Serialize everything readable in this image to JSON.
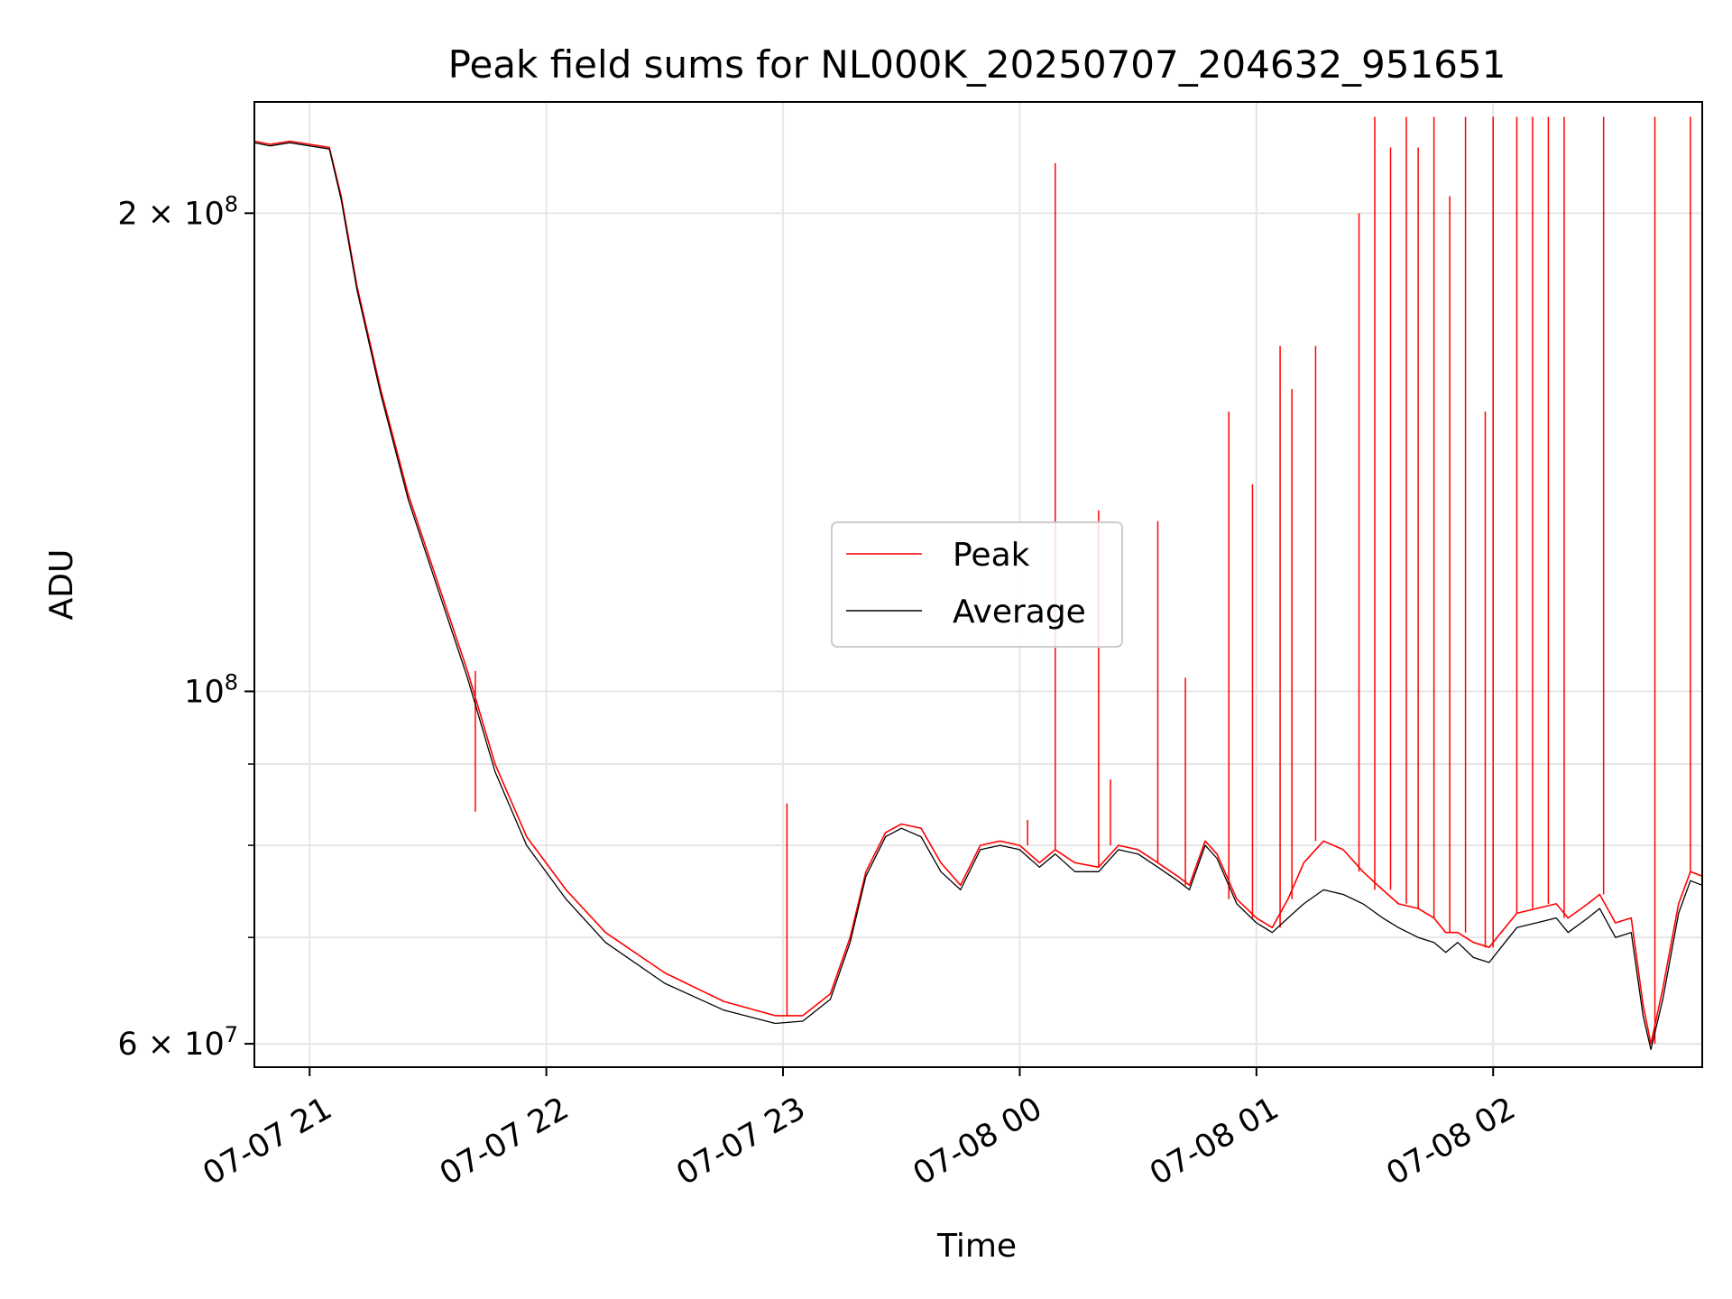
{
  "chart_data": {
    "type": "line",
    "title": "Peak field sums for NL000K_20250707_204632_951651",
    "xlabel": "Time",
    "ylabel": "ADU",
    "yscale": "log",
    "xlim": [
      "2025-07-07 20:46",
      "2025-07-08 02:53"
    ],
    "ylim": [
      58000000,
      235000000
    ],
    "grid": true,
    "legend_position": "center",
    "x_ticks": [
      "07-07 21",
      "07-07 22",
      "07-07 23",
      "07-08 00",
      "07-08 01",
      "07-08 02"
    ],
    "y_ticks": [
      {
        "value": 200000000,
        "mantissa": "2",
        "exponent": "8"
      },
      {
        "value": 100000000,
        "mantissa": "",
        "exponent": "8"
      },
      {
        "value": 60000000,
        "mantissa": "6",
        "exponent": "7"
      }
    ],
    "series": [
      {
        "name": "Peak",
        "color": "#ff0000",
        "points": [
          [
            "2025-07-07 20:46",
            222000000
          ],
          [
            "2025-07-07 20:50",
            221000000
          ],
          [
            "2025-07-07 20:55",
            222000000
          ],
          [
            "2025-07-07 21:00",
            221000000
          ],
          [
            "2025-07-07 21:05",
            220000000
          ],
          [
            "2025-07-07 21:08",
            205000000
          ],
          [
            "2025-07-07 21:12",
            180000000
          ],
          [
            "2025-07-07 21:18",
            155000000
          ],
          [
            "2025-07-07 21:25",
            133000000
          ],
          [
            "2025-07-07 21:32",
            118000000
          ],
          [
            "2025-07-07 21:40",
            103000000
          ],
          [
            "2025-07-07 21:47",
            90000000
          ],
          [
            "2025-07-07 21:55",
            81000000
          ],
          [
            "2025-07-07 22:05",
            75000000
          ],
          [
            "2025-07-07 22:15",
            70500000
          ],
          [
            "2025-07-07 22:30",
            66500000
          ],
          [
            "2025-07-07 22:45",
            63800000
          ],
          [
            "2025-07-07 22:58",
            62500000
          ],
          [
            "2025-07-07 23:05",
            62500000
          ],
          [
            "2025-07-07 23:12",
            64500000
          ],
          [
            "2025-07-07 23:17",
            70000000
          ],
          [
            "2025-07-07 23:21",
            77000000
          ],
          [
            "2025-07-07 23:26",
            81500000
          ],
          [
            "2025-07-07 23:30",
            82500000
          ],
          [
            "2025-07-07 23:35",
            82000000
          ],
          [
            "2025-07-07 23:40",
            78000000
          ],
          [
            "2025-07-07 23:45",
            75500000
          ],
          [
            "2025-07-07 23:50",
            80000000
          ],
          [
            "2025-07-07 23:55",
            80500000
          ],
          [
            "2025-07-08 00:00",
            80000000
          ],
          [
            "2025-07-08 00:05",
            78000000
          ],
          [
            "2025-07-08 00:09",
            79500000
          ],
          [
            "2025-07-08 00:14",
            78000000
          ],
          [
            "2025-07-08 00:20",
            77500000
          ],
          [
            "2025-07-08 00:25",
            80000000
          ],
          [
            "2025-07-08 00:30",
            79500000
          ],
          [
            "2025-07-08 00:35",
            78000000
          ],
          [
            "2025-07-08 00:40",
            76500000
          ],
          [
            "2025-07-08 00:43",
            75500000
          ],
          [
            "2025-07-08 00:47",
            80500000
          ],
          [
            "2025-07-08 00:50",
            79000000
          ],
          [
            "2025-07-08 00:55",
            74000000
          ],
          [
            "2025-07-08 01:00",
            72000000
          ],
          [
            "2025-07-08 01:04",
            71000000
          ],
          [
            "2025-07-08 01:08",
            74000000
          ],
          [
            "2025-07-08 01:12",
            78000000
          ],
          [
            "2025-07-08 01:17",
            80500000
          ],
          [
            "2025-07-08 01:22",
            79500000
          ],
          [
            "2025-07-08 01:27",
            77000000
          ],
          [
            "2025-07-08 01:32",
            75000000
          ],
          [
            "2025-07-08 01:36",
            73500000
          ],
          [
            "2025-07-08 01:41",
            73000000
          ],
          [
            "2025-07-08 01:45",
            72000000
          ],
          [
            "2025-07-08 01:48",
            70500000
          ],
          [
            "2025-07-08 01:51",
            70500000
          ],
          [
            "2025-07-08 01:55",
            69500000
          ],
          [
            "2025-07-08 01:59",
            69000000
          ],
          [
            "2025-07-08 02:02",
            70500000
          ],
          [
            "2025-07-08 02:06",
            72500000
          ],
          [
            "2025-07-08 02:11",
            73000000
          ],
          [
            "2025-07-08 02:16",
            73500000
          ],
          [
            "2025-07-08 02:19",
            72000000
          ],
          [
            "2025-07-08 02:24",
            73500000
          ],
          [
            "2025-07-08 02:27",
            74500000
          ],
          [
            "2025-07-08 02:31",
            71500000
          ],
          [
            "2025-07-08 02:35",
            72000000
          ],
          [
            "2025-07-08 02:38",
            63500000
          ],
          [
            "2025-07-08 02:40",
            60000000
          ],
          [
            "2025-07-08 02:43",
            65000000
          ],
          [
            "2025-07-08 02:47",
            73500000
          ],
          [
            "2025-07-08 02:50",
            77000000
          ],
          [
            "2025-07-08 02:53",
            76500000
          ]
        ],
        "spikes": [
          [
            "2025-07-07 21:42",
            84000000
          ],
          [
            "2025-07-07 23:01",
            85000000
          ],
          [
            "2025-07-08 00:02",
            83000000
          ],
          [
            "2025-07-08 00:09",
            215000000
          ],
          [
            "2025-07-08 00:20",
            130000000
          ],
          [
            "2025-07-08 00:23",
            88000000
          ],
          [
            "2025-07-08 00:35",
            128000000
          ],
          [
            "2025-07-08 00:42",
            102000000
          ],
          [
            "2025-07-08 00:53",
            150000000
          ],
          [
            "2025-07-08 00:59",
            135000000
          ],
          [
            "2025-07-08 01:06",
            165000000
          ],
          [
            "2025-07-08 01:09",
            155000000
          ],
          [
            "2025-07-08 01:15",
            165000000
          ],
          [
            "2025-07-08 01:26",
            200000000
          ],
          [
            "2025-07-08 01:30",
            230000000
          ],
          [
            "2025-07-08 01:34",
            220000000
          ],
          [
            "2025-07-08 01:38",
            230000000
          ],
          [
            "2025-07-08 01:41",
            220000000
          ],
          [
            "2025-07-08 01:45",
            230000000
          ],
          [
            "2025-07-08 01:49",
            205000000
          ],
          [
            "2025-07-08 01:53",
            230000000
          ],
          [
            "2025-07-08 01:58",
            150000000
          ],
          [
            "2025-07-08 02:00",
            230000000
          ],
          [
            "2025-07-08 02:06",
            230000000
          ],
          [
            "2025-07-08 02:10",
            230000000
          ],
          [
            "2025-07-08 02:14",
            230000000
          ],
          [
            "2025-07-08 02:18",
            230000000
          ],
          [
            "2025-07-08 02:28",
            230000000
          ],
          [
            "2025-07-08 02:41",
            230000000
          ],
          [
            "2025-07-08 02:50",
            230000000
          ]
        ]
      },
      {
        "name": "Average",
        "color": "#000000",
        "points": [
          [
            "2025-07-07 20:46",
            221500000
          ],
          [
            "2025-07-07 20:50",
            220500000
          ],
          [
            "2025-07-07 20:55",
            221500000
          ],
          [
            "2025-07-07 21:00",
            220500000
          ],
          [
            "2025-07-07 21:05",
            219500000
          ],
          [
            "2025-07-07 21:08",
            204000000
          ],
          [
            "2025-07-07 21:12",
            179000000
          ],
          [
            "2025-07-07 21:18",
            154000000
          ],
          [
            "2025-07-07 21:25",
            132000000
          ],
          [
            "2025-07-07 21:32",
            117000000
          ],
          [
            "2025-07-07 21:40",
            102000000
          ],
          [
            "2025-07-07 21:47",
            89000000
          ],
          [
            "2025-07-07 21:55",
            80000000
          ],
          [
            "2025-07-07 22:05",
            74000000
          ],
          [
            "2025-07-07 22:15",
            69500000
          ],
          [
            "2025-07-07 22:30",
            65500000
          ],
          [
            "2025-07-07 22:45",
            63000000
          ],
          [
            "2025-07-07 22:58",
            61800000
          ],
          [
            "2025-07-07 23:05",
            62000000
          ],
          [
            "2025-07-07 23:12",
            64000000
          ],
          [
            "2025-07-07 23:17",
            69500000
          ],
          [
            "2025-07-07 23:21",
            76500000
          ],
          [
            "2025-07-07 23:26",
            81000000
          ],
          [
            "2025-07-07 23:30",
            82000000
          ],
          [
            "2025-07-07 23:35",
            81000000
          ],
          [
            "2025-07-07 23:40",
            77000000
          ],
          [
            "2025-07-07 23:45",
            75000000
          ],
          [
            "2025-07-07 23:50",
            79500000
          ],
          [
            "2025-07-07 23:55",
            80000000
          ],
          [
            "2025-07-08 00:00",
            79500000
          ],
          [
            "2025-07-08 00:05",
            77500000
          ],
          [
            "2025-07-08 00:09",
            79000000
          ],
          [
            "2025-07-08 00:14",
            77000000
          ],
          [
            "2025-07-08 00:20",
            77000000
          ],
          [
            "2025-07-08 00:25",
            79500000
          ],
          [
            "2025-07-08 00:30",
            79000000
          ],
          [
            "2025-07-08 00:35",
            77500000
          ],
          [
            "2025-07-08 00:40",
            76000000
          ],
          [
            "2025-07-08 00:43",
            75000000
          ],
          [
            "2025-07-08 00:47",
            80000000
          ],
          [
            "2025-07-08 00:50",
            78500000
          ],
          [
            "2025-07-08 00:55",
            73500000
          ],
          [
            "2025-07-08 01:00",
            71500000
          ],
          [
            "2025-07-08 01:04",
            70500000
          ],
          [
            "2025-07-08 01:08",
            72000000
          ],
          [
            "2025-07-08 01:12",
            73500000
          ],
          [
            "2025-07-08 01:17",
            75000000
          ],
          [
            "2025-07-08 01:22",
            74500000
          ],
          [
            "2025-07-08 01:27",
            73500000
          ],
          [
            "2025-07-08 01:32",
            72000000
          ],
          [
            "2025-07-08 01:36",
            71000000
          ],
          [
            "2025-07-08 01:41",
            70000000
          ],
          [
            "2025-07-08 01:45",
            69500000
          ],
          [
            "2025-07-08 01:48",
            68500000
          ],
          [
            "2025-07-08 01:51",
            69500000
          ],
          [
            "2025-07-08 01:55",
            68000000
          ],
          [
            "2025-07-08 01:59",
            67500000
          ],
          [
            "2025-07-08 02:02",
            69000000
          ],
          [
            "2025-07-08 02:06",
            71000000
          ],
          [
            "2025-07-08 02:11",
            71500000
          ],
          [
            "2025-07-08 02:16",
            72000000
          ],
          [
            "2025-07-08 02:19",
            70500000
          ],
          [
            "2025-07-08 02:24",
            72000000
          ],
          [
            "2025-07-08 02:27",
            73000000
          ],
          [
            "2025-07-08 02:31",
            70000000
          ],
          [
            "2025-07-08 02:35",
            70500000
          ],
          [
            "2025-07-08 02:38",
            62500000
          ],
          [
            "2025-07-08 02:40",
            59500000
          ],
          [
            "2025-07-08 02:43",
            64000000
          ],
          [
            "2025-07-08 02:47",
            72500000
          ],
          [
            "2025-07-08 02:50",
            76000000
          ],
          [
            "2025-07-08 02:53",
            75500000
          ]
        ]
      }
    ]
  }
}
